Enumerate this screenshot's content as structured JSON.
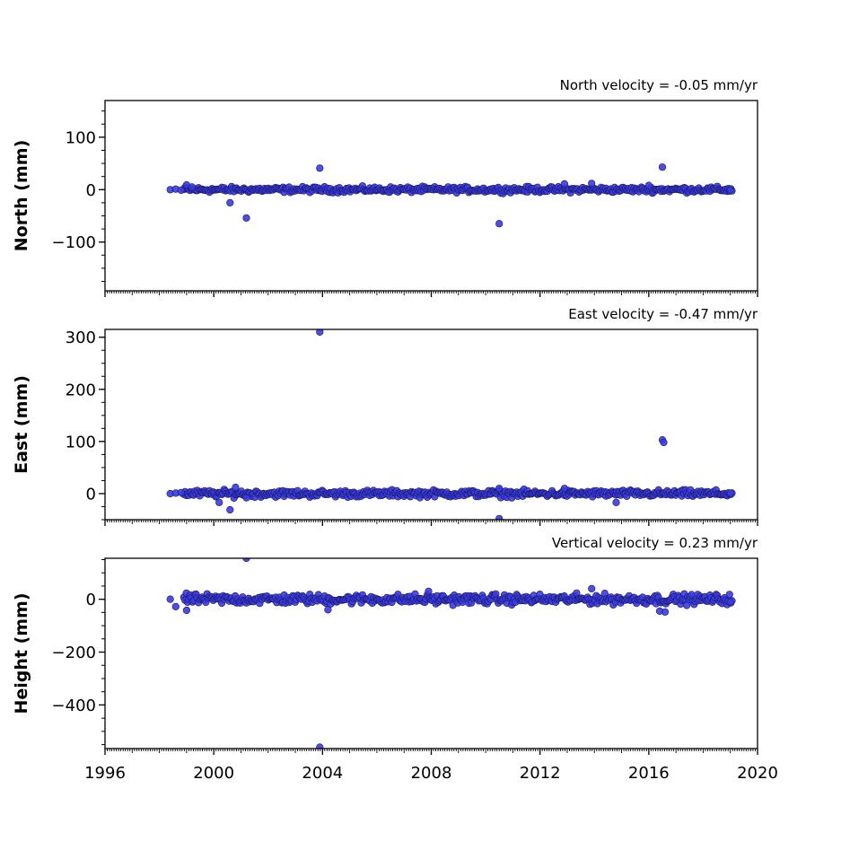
{
  "chart_data": [
    {
      "type": "scatter",
      "title": "North velocity = -0.05 mm/yr",
      "ylabel": "North (mm)",
      "xlim": [
        1996,
        2020
      ],
      "ylim": [
        -193,
        170
      ],
      "yticks": [
        100,
        0,
        -100
      ],
      "ytick_labels": [
        "100",
        "0",
        "−100"
      ],
      "band": {
        "x_start": 1998.9,
        "x_end": 2019.1,
        "y_center": 0,
        "y_spread": 4
      },
      "points": [
        {
          "x": 1998.4,
          "y": 0
        },
        {
          "x": 1998.6,
          "y": 1
        },
        {
          "x": 1998.8,
          "y": -1
        },
        {
          "x": 1999.0,
          "y": 9
        },
        {
          "x": 1999.2,
          "y": 5
        },
        {
          "x": 2000.6,
          "y": -25
        },
        {
          "x": 2001.2,
          "y": -54
        },
        {
          "x": 2003.9,
          "y": 41
        },
        {
          "x": 2010.5,
          "y": -65
        },
        {
          "x": 2012.9,
          "y": 11
        },
        {
          "x": 2013.9,
          "y": 12
        },
        {
          "x": 2016.0,
          "y": 8
        },
        {
          "x": 2016.5,
          "y": 43
        },
        {
          "x": 2019.0,
          "y": -1
        }
      ],
      "marker_color": "#3a3ae6",
      "edge_color": "#1a1a5a"
    },
    {
      "type": "scatter",
      "title": "East velocity = -0.47 mm/yr",
      "ylabel": "East (mm)",
      "xlim": [
        1996,
        2020
      ],
      "ylim": [
        -50,
        315
      ],
      "yticks": [
        300,
        200,
        100,
        0
      ],
      "ytick_labels": [
        "300",
        "200",
        "100",
        "0"
      ],
      "band": {
        "x_start": 1998.9,
        "x_end": 2019.1,
        "y_center": 0,
        "y_spread": 5
      },
      "points": [
        {
          "x": 1998.4,
          "y": 0
        },
        {
          "x": 1998.6,
          "y": 1
        },
        {
          "x": 1998.8,
          "y": 2
        },
        {
          "x": 2000.2,
          "y": -17
        },
        {
          "x": 2000.6,
          "y": -31
        },
        {
          "x": 2000.8,
          "y": 12
        },
        {
          "x": 2001.2,
          "y": -8
        },
        {
          "x": 2003.9,
          "y": 310
        },
        {
          "x": 2010.5,
          "y": -48
        },
        {
          "x": 2010.5,
          "y": 10
        },
        {
          "x": 2012.9,
          "y": 10
        },
        {
          "x": 2014.8,
          "y": -17
        },
        {
          "x": 2016.5,
          "y": 103
        },
        {
          "x": 2016.55,
          "y": 98
        },
        {
          "x": 2019.0,
          "y": 1
        }
      ],
      "marker_color": "#3a3ae6",
      "edge_color": "#1a1a5a"
    },
    {
      "type": "scatter",
      "title": "Vertical velocity = 0.23 mm/yr",
      "ylabel": "Height (mm)",
      "xlim": [
        1996,
        2020
      ],
      "xticks": [
        1996,
        2000,
        2004,
        2008,
        2012,
        2016,
        2020
      ],
      "xtick_labels": [
        "1996",
        "2000",
        "2004",
        "2008",
        "2012",
        "2016",
        "2020"
      ],
      "ylim": [
        -565,
        155
      ],
      "yticks": [
        0,
        -200,
        -400
      ],
      "ytick_labels": [
        "0",
        "−200",
        "−400"
      ],
      "band": {
        "x_start": 1998.9,
        "x_end": 2019.1,
        "y_center": 0,
        "y_spread": 14
      },
      "points": [
        {
          "x": 1998.4,
          "y": 0
        },
        {
          "x": 1998.6,
          "y": -28
        },
        {
          "x": 1999.0,
          "y": -42
        },
        {
          "x": 2001.2,
          "y": 155
        },
        {
          "x": 2003.9,
          "y": -560
        },
        {
          "x": 2004.2,
          "y": -40
        },
        {
          "x": 2007.9,
          "y": 30
        },
        {
          "x": 2013.9,
          "y": 40
        },
        {
          "x": 2016.4,
          "y": -45
        },
        {
          "x": 2016.6,
          "y": -48
        },
        {
          "x": 2019.0,
          "y": -10
        }
      ],
      "marker_color": "#3a3ae6",
      "edge_color": "#1a1a5a"
    }
  ]
}
